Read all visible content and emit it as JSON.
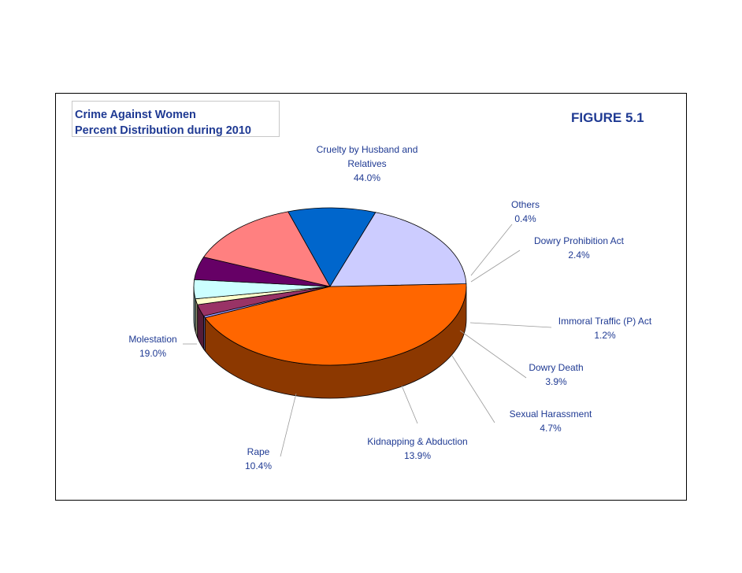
{
  "chart_data": {
    "type": "pie",
    "title_lines": [
      "Crime Against Women",
      "Percent Distribution during 2010"
    ],
    "figure_label": "FIGURE 5.1",
    "slices": [
      {
        "name": "Cruelty by Husband and Relatives",
        "label_lines": [
          "Cruelty by Husband and",
          "Relatives"
        ],
        "value": 44.0,
        "value_label": "44.0%",
        "color": "#ff6600"
      },
      {
        "name": "Others",
        "label_lines": [
          "Others"
        ],
        "value": 0.4,
        "value_label": "0.4%",
        "color": "#9999ff"
      },
      {
        "name": "Dowry Prohibition Act",
        "label_lines": [
          "Dowry Prohibition Act"
        ],
        "value": 2.4,
        "value_label": "2.4%",
        "color": "#993366"
      },
      {
        "name": "Immoral Traffic (P) Act",
        "label_lines": [
          "Immoral Traffic (P) Act"
        ],
        "value": 1.2,
        "value_label": "1.2%",
        "color": "#ffffcc"
      },
      {
        "name": "Dowry Death",
        "label_lines": [
          "Dowry Death"
        ],
        "value": 3.9,
        "value_label": "3.9%",
        "color": "#ccffff"
      },
      {
        "name": "Sexual Harassment",
        "label_lines": [
          "Sexual Harassment"
        ],
        "value": 4.7,
        "value_label": "4.7%",
        "color": "#660066"
      },
      {
        "name": "Kidnapping & Abduction",
        "label_lines": [
          "Kidnapping & Abduction"
        ],
        "value": 13.9,
        "value_label": "13.9%",
        "color": "#ff8080"
      },
      {
        "name": "Rape",
        "label_lines": [
          "Rape"
        ],
        "value": 10.4,
        "value_label": "10.4%",
        "color": "#0066cc"
      },
      {
        "name": "Molestation",
        "label_lines": [
          "Molestation"
        ],
        "value": 19.0,
        "value_label": "19.0%",
        "color": "#ccccff"
      }
    ]
  }
}
